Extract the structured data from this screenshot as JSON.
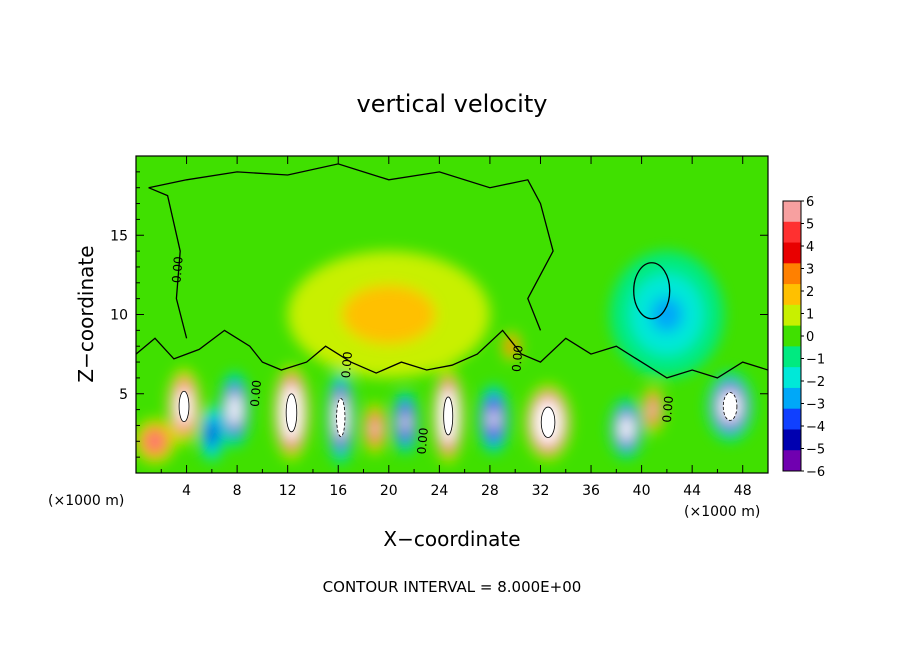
{
  "chart_data": {
    "type": "heatmap",
    "title": "vertical velocity",
    "xlabel": "X−coordinate",
    "ylabel": "Z−coordinate",
    "x_unit_left": "(×1000 m)",
    "x_unit_right": "(×1000 m)",
    "footer": "CONTOUR INTERVAL = 8.000E+00",
    "contour_interval": 8.0,
    "contour_label": "0.00",
    "xlim": [
      0,
      50
    ],
    "ylim": [
      0,
      20
    ],
    "x_ticks": [
      4,
      8,
      12,
      16,
      20,
      24,
      28,
      32,
      36,
      40,
      44,
      48
    ],
    "x_tick_labels": [
      "4",
      "8",
      "12",
      "16",
      "20",
      "24",
      "28",
      "32",
      "36",
      "40",
      "44",
      "48"
    ],
    "y_ticks": [
      5,
      10,
      15
    ],
    "y_tick_labels": [
      "5",
      "10",
      "15"
    ],
    "colorbar": {
      "min": -6,
      "max": 6,
      "levels": [
        6,
        5,
        4,
        3,
        2,
        1,
        0,
        -1,
        -2,
        -3,
        -4,
        -5,
        -6
      ],
      "labels": [
        "6",
        "5",
        "4",
        "3",
        "2",
        "1",
        "0",
        "−1",
        "−2",
        "−3",
        "−4",
        "−5",
        "−6"
      ],
      "colors": [
        "#f7a0a0",
        "#ff3030",
        "#e80000",
        "#ff8000",
        "#ffc000",
        "#c8f000",
        "#40e000",
        "#00ea80",
        "#00e8d8",
        "#00a8f8",
        "#1040ff",
        "#0000b0",
        "#7000b0"
      ]
    },
    "background_value": 0.2,
    "cells": [
      {
        "x": 3.8,
        "z": 4.2,
        "amplitude": 9,
        "radius_x": 1.3,
        "radius_z": 2.4
      },
      {
        "x": 1.5,
        "z": 2.0,
        "amplitude": 4.5,
        "radius_x": 1.6,
        "radius_z": 1.4
      },
      {
        "x": 7.8,
        "z": 4.0,
        "amplitude": -7,
        "radius_x": 1.2,
        "radius_z": 2.4
      },
      {
        "x": 6.0,
        "z": 2.5,
        "amplitude": -4,
        "radius_x": 1.0,
        "radius_z": 1.8
      },
      {
        "x": 12.3,
        "z": 3.8,
        "amplitude": 11,
        "radius_x": 1.4,
        "radius_z": 3.0
      },
      {
        "x": 16.2,
        "z": 3.5,
        "amplitude": -9,
        "radius_x": 1.1,
        "radius_z": 3.0
      },
      {
        "x": 18.9,
        "z": 2.8,
        "amplitude": 5,
        "radius_x": 0.9,
        "radius_z": 1.6
      },
      {
        "x": 21.3,
        "z": 3.2,
        "amplitude": -6,
        "radius_x": 1.0,
        "radius_z": 2.0
      },
      {
        "x": 24.7,
        "z": 3.6,
        "amplitude": 10,
        "radius_x": 1.2,
        "radius_z": 3.0
      },
      {
        "x": 28.3,
        "z": 3.4,
        "amplitude": -6,
        "radius_x": 1.2,
        "radius_z": 2.2
      },
      {
        "x": 29.7,
        "z": 8.0,
        "amplitude": 3,
        "radius_x": 0.7,
        "radius_z": 0.9
      },
      {
        "x": 32.6,
        "z": 3.2,
        "amplitude": 10,
        "radius_x": 1.8,
        "radius_z": 2.4
      },
      {
        "x": 38.8,
        "z": 2.8,
        "amplitude": -7,
        "radius_x": 1.3,
        "radius_z": 1.9
      },
      {
        "x": 40.9,
        "z": 4.0,
        "amplitude": 5,
        "radius_x": 0.8,
        "radius_z": 1.5
      },
      {
        "x": 47.0,
        "z": 4.2,
        "amplitude": -9,
        "radius_x": 1.8,
        "radius_z": 2.2
      },
      {
        "x": 42.0,
        "z": 10.0,
        "amplitude": -1.6,
        "radius_x": 4.5,
        "radius_z": 4.0
      },
      {
        "x": 20.0,
        "z": 10.0,
        "amplitude": 0.9,
        "radius_x": 8.0,
        "radius_z": 4.0
      }
    ]
  }
}
